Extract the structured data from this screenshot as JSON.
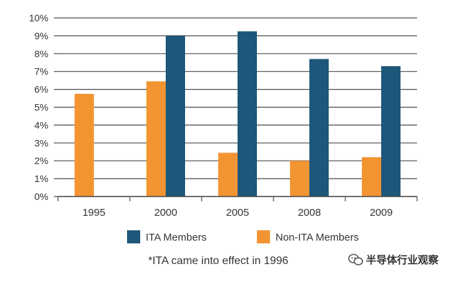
{
  "chart_data": {
    "type": "bar",
    "categories": [
      "1995",
      "2000",
      "2005",
      "2008",
      "2009"
    ],
    "series": [
      {
        "name": "Non-ITA Members",
        "color": "#f39433",
        "values": [
          5.75,
          6.45,
          2.45,
          2.0,
          2.2
        ]
      },
      {
        "name": "ITA Members",
        "color": "#1d577a",
        "values": [
          null,
          9.0,
          9.25,
          7.7,
          7.3
        ]
      }
    ],
    "y_ticks": [
      "0%",
      "1%",
      "2%",
      "3%",
      "4%",
      "5%",
      "6%",
      "7%",
      "8%",
      "9%",
      "10%"
    ],
    "ylim": [
      0,
      10
    ],
    "grid": true,
    "legend": {
      "position": "bottom",
      "order": [
        "ITA Members",
        "Non-ITA Members"
      ]
    },
    "footnote": "*ITA came into effect in 1996",
    "title": "",
    "xlabel": "",
    "ylabel": ""
  },
  "watermark": {
    "text": "半导体行业观察",
    "icon": "wechat-logo-icon"
  }
}
